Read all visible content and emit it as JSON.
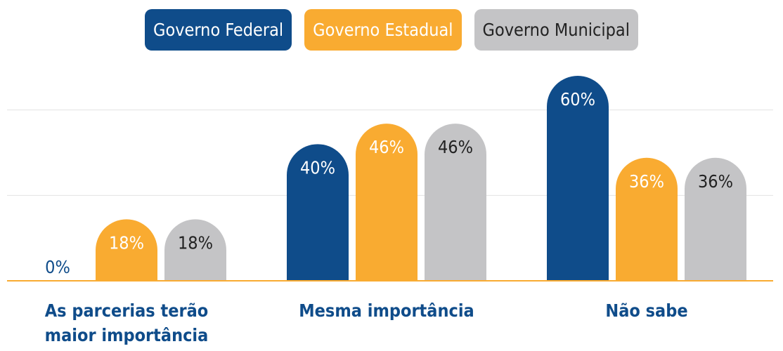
{
  "chart_data": {
    "type": "bar",
    "categories": [
      "As parcerias terão maior importância",
      "Mesma importância",
      "Não sabe"
    ],
    "series": [
      {
        "name": "Governo Federal",
        "color": "#0f4c8a",
        "values": [
          0,
          40,
          60
        ],
        "value_labels": [
          "0%",
          "40%",
          "60%"
        ]
      },
      {
        "name": "Governo Estadual",
        "color": "#f9ab31",
        "values": [
          18,
          46,
          36
        ],
        "value_labels": [
          "18%",
          "46%",
          "36%"
        ]
      },
      {
        "name": "Governo Municipal",
        "color": "#c4c4c6",
        "values": [
          18,
          46,
          36
        ],
        "value_labels": [
          "18%",
          "46%",
          "36%"
        ]
      }
    ],
    "ylim": [
      0,
      60
    ],
    "yticks": [
      0,
      25,
      50
    ],
    "grid": true
  }
}
